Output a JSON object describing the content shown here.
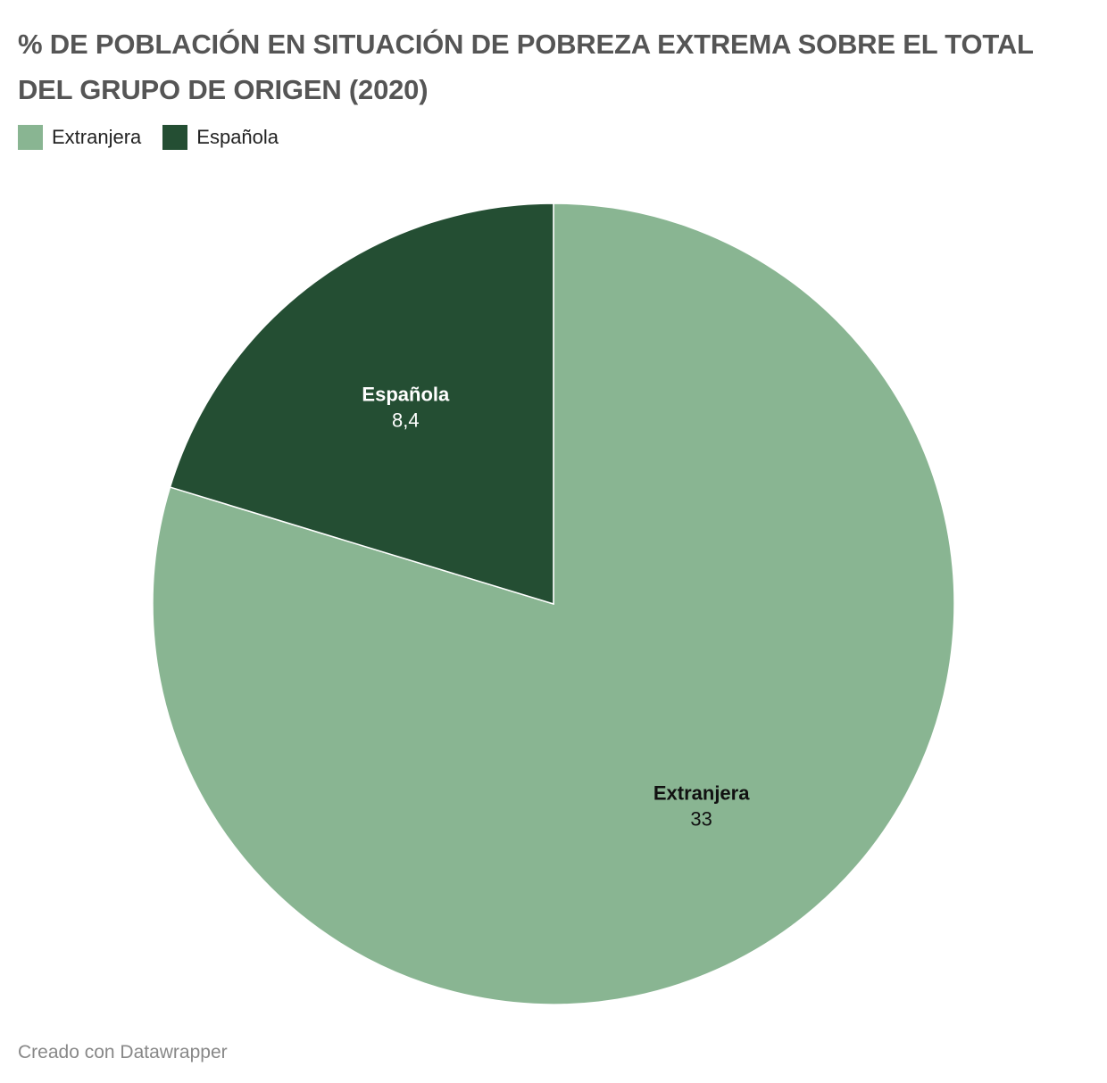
{
  "header": {
    "title": "% DE POBLACIÓN EN SITUACIÓN DE POBREZA EXTREMA SOBRE EL TOTAL DEL GRUPO DE ORIGEN (2020)"
  },
  "legend": {
    "items": [
      {
        "label": "Extranjera",
        "color": "#89b592"
      },
      {
        "label": "Española",
        "color": "#244e33"
      }
    ]
  },
  "chart_data": {
    "type": "pie",
    "title": "% DE POBLACIÓN EN SITUACIÓN DE POBREZA EXTREMA SOBRE EL TOTAL DEL GRUPO DE ORIGEN (2020)",
    "categories": [
      "Extranjera",
      "Española"
    ],
    "values": [
      33,
      8.4
    ],
    "value_labels": [
      "33",
      "8,4"
    ],
    "colors": [
      "#89b592",
      "#244e33"
    ],
    "label_colors": [
      "#111111",
      "#ffffff"
    ],
    "legend_position": "top-left"
  },
  "footer": {
    "credit": "Creado con Datawrapper"
  }
}
